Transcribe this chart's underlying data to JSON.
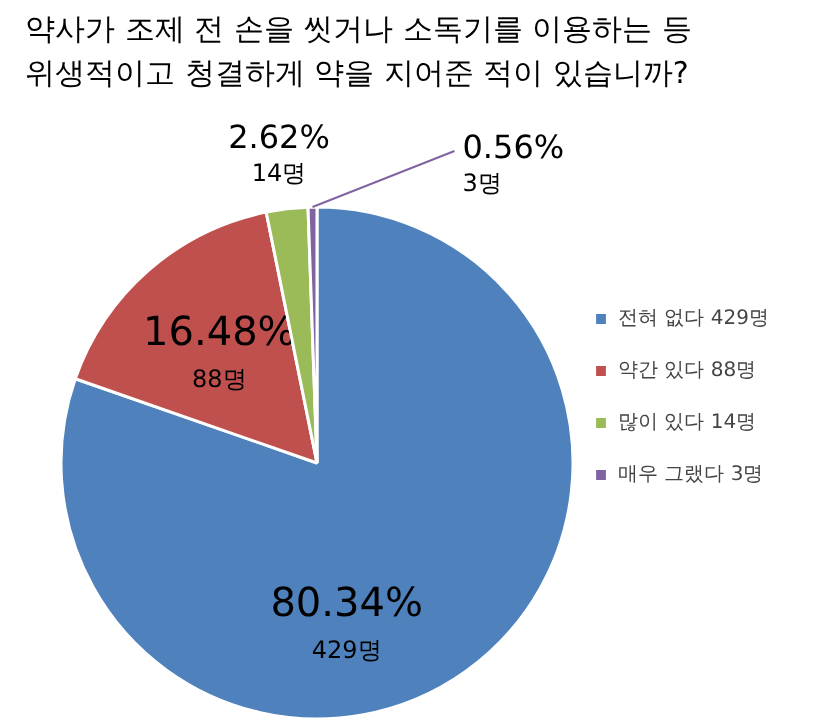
{
  "chart_data": {
    "type": "pie",
    "title": "약사가 조제 전 손을 씻거나 소독기를 이용하는 등\n위생적이고 청결하게 약을 지어준 적이 있습니까?",
    "categories": [
      "전혀 없다 429명",
      "약간 있다 88명",
      "많이 있다 14명",
      "매우 그랬다 3명"
    ],
    "values": [
      80.34,
      16.48,
      2.62,
      0.56
    ],
    "colors": [
      "#4f81bd",
      "#c0504d",
      "#9bbb59",
      "#8064a2"
    ],
    "value_labels": [
      "80.34%\n429명",
      "16.48%\n88명",
      "2.62%\n14명",
      "0.56%\n3명"
    ],
    "legend": "right"
  }
}
